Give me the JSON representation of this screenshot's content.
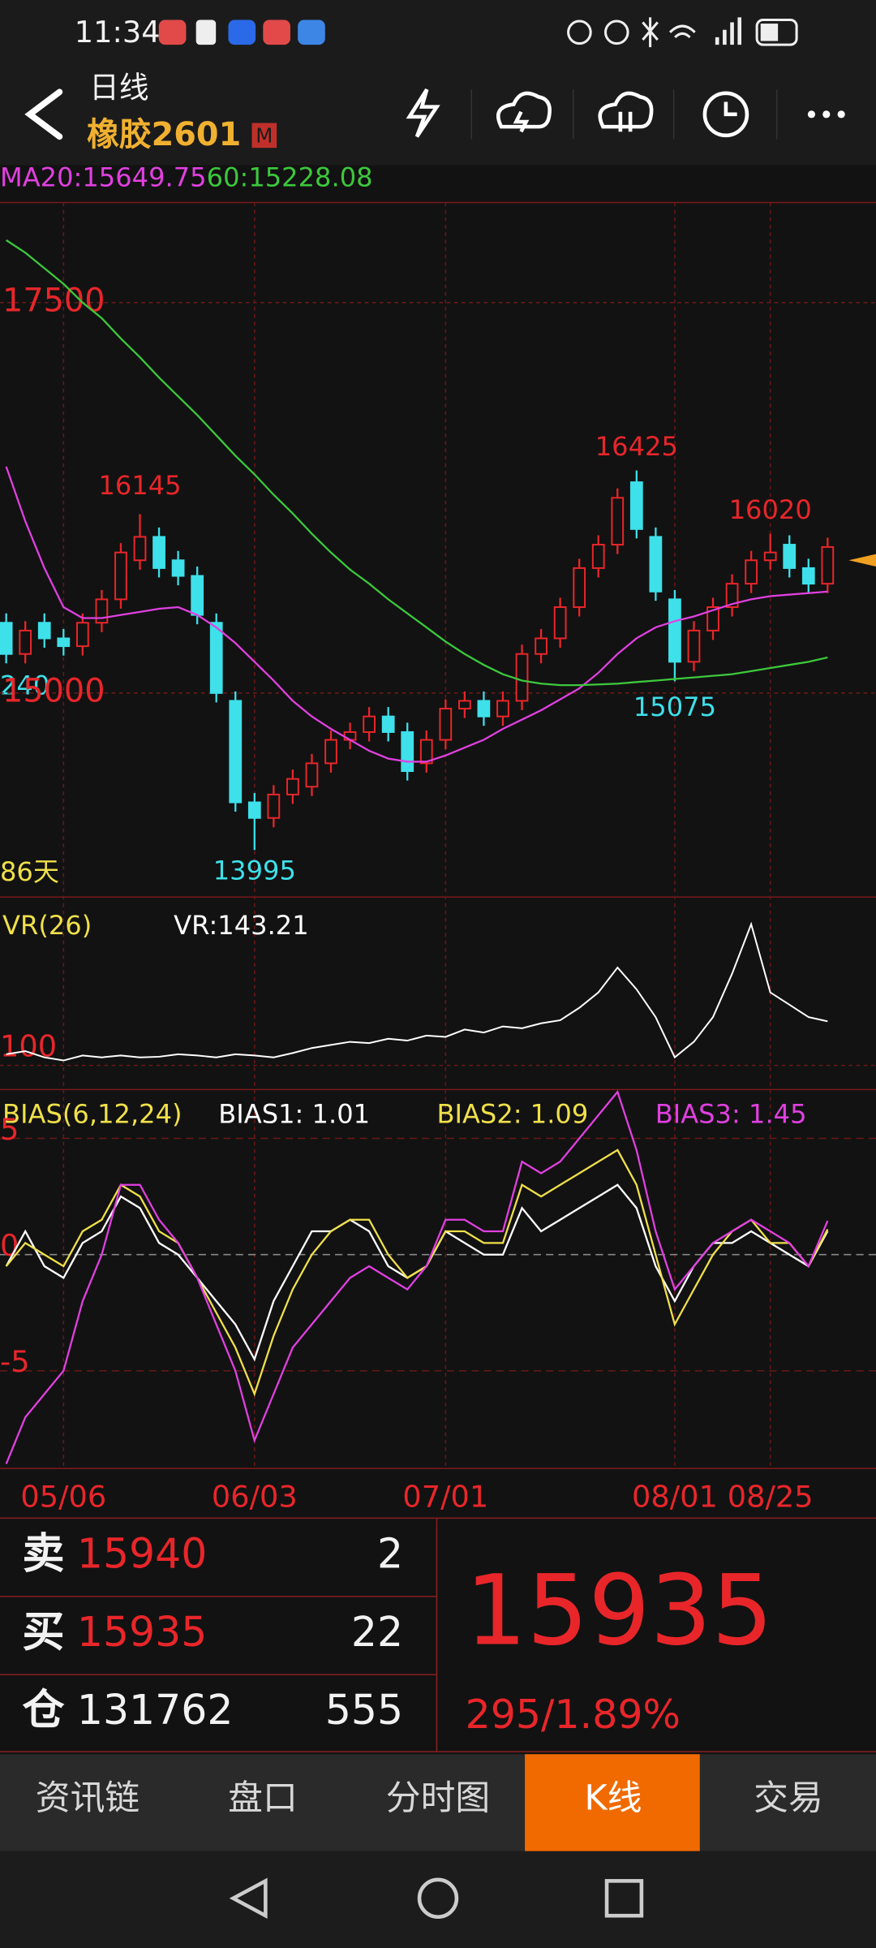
{
  "status_bar": {
    "time": "11:34"
  },
  "header": {
    "period": "日线",
    "contract": "橡胶2601",
    "badge": "M"
  },
  "price_panel": {
    "type": "candlestick",
    "open": [
      15450,
      15250,
      15450,
      15350,
      15300,
      15450,
      15600,
      15850,
      16000,
      15850,
      15750,
      15450,
      14950,
      14300,
      14200,
      14350,
      14400,
      14550,
      14700,
      14750,
      14850,
      14750,
      14550,
      14700,
      14900,
      14950,
      14850,
      14950,
      15250,
      15350,
      15550,
      15800,
      15950,
      16350,
      16000,
      15600,
      15200,
      15400,
      15550,
      15700,
      15850,
      15950,
      15800,
      15700
    ],
    "high": [
      15510,
      15460,
      15510,
      15410,
      15510,
      15660,
      15960,
      16145,
      16060,
      15910,
      15810,
      15510,
      15010,
      14360,
      14410,
      14510,
      14610,
      14760,
      14810,
      14910,
      14910,
      14810,
      14760,
      14960,
      15010,
      15010,
      15010,
      15310,
      15410,
      15610,
      15860,
      16010,
      16310,
      16425,
      16060,
      15660,
      15460,
      15610,
      15760,
      15910,
      16020,
      16010,
      15860,
      15995
    ],
    "low": [
      15190,
      15190,
      15290,
      15240,
      15240,
      15390,
      15540,
      15790,
      15740,
      15690,
      15440,
      14940,
      14240,
      13995,
      14140,
      14290,
      14340,
      14490,
      14640,
      14690,
      14690,
      14440,
      14490,
      14640,
      14840,
      14790,
      14790,
      14890,
      15190,
      15290,
      15490,
      15740,
      15890,
      15990,
      15590,
      15075,
      15140,
      15340,
      15490,
      15640,
      15790,
      15740,
      15640,
      15640
    ],
    "close": [
      15250,
      15400,
      15350,
      15300,
      15450,
      15600,
      15900,
      16000,
      15800,
      15750,
      15500,
      15000,
      14300,
      14200,
      14350,
      14450,
      14550,
      14700,
      14750,
      14850,
      14750,
      14500,
      14700,
      14900,
      14950,
      14850,
      14950,
      15250,
      15350,
      15550,
      15800,
      15950,
      16250,
      16050,
      15650,
      15200,
      15400,
      15550,
      15700,
      15850,
      15900,
      15800,
      15700,
      15935
    ],
    "up_color": "#e8262a",
    "down_color": "#3ee0ea",
    "series": [
      {
        "name": "MA20:",
        "color": "#e040e0",
        "values": [
          16450,
          16100,
          15800,
          15550,
          15480,
          15480,
          15500,
          15520,
          15540,
          15550,
          15500,
          15420,
          15320,
          15200,
          15080,
          14950,
          14850,
          14770,
          14700,
          14630,
          14580,
          14560,
          14560,
          14600,
          14650,
          14700,
          14770,
          14830,
          14890,
          14960,
          15030,
          15130,
          15250,
          15350,
          15420,
          15460,
          15490,
          15530,
          15570,
          15600,
          15620,
          15630,
          15640,
          15649.75
        ]
      },
      {
        "name": "60:",
        "color": "#3cc83c",
        "values": [
          17900,
          17820,
          17720,
          17620,
          17500,
          17400,
          17270,
          17150,
          17020,
          16900,
          16780,
          16650,
          16520,
          16400,
          16270,
          16150,
          16020,
          15900,
          15790,
          15700,
          15600,
          15510,
          15420,
          15330,
          15250,
          15180,
          15120,
          15080,
          15060,
          15050,
          15050,
          15055,
          15060,
          15070,
          15080,
          15090,
          15100,
          15110,
          15120,
          15140,
          15160,
          15180,
          15200,
          15228.08
        ]
      }
    ],
    "ylim": [
      13694,
      18141
    ],
    "yticks": [
      15000,
      17500
    ],
    "days_label": "86天",
    "partial_label": "240"
  },
  "vr_panel": {
    "type": "line",
    "title": "VR(26)",
    "series": [
      {
        "name": "VR:",
        "color": "#ffffff",
        "values": [
          90,
          95,
          85,
          80,
          88,
          85,
          88,
          85,
          86,
          90,
          88,
          85,
          90,
          88,
          85,
          92,
          100,
          105,
          110,
          108,
          115,
          112,
          120,
          118,
          130,
          125,
          135,
          132,
          140,
          145,
          165,
          190,
          230,
          195,
          150,
          85,
          110,
          150,
          220,
          300,
          190,
          170,
          150,
          143.21
        ]
      }
    ],
    "ylim": [
      33,
      344
    ],
    "yticks": [
      100
    ]
  },
  "bias_panel": {
    "type": "line",
    "title": "BIAS(6,12,24)",
    "series": [
      {
        "name": "BIAS1: ",
        "color": "#ffffff",
        "values": [
          -0.5,
          1,
          -0.5,
          -1,
          0.5,
          1,
          2.5,
          2,
          0.5,
          0,
          -1,
          -2,
          -3,
          -4.5,
          -2,
          -0.5,
          1,
          1,
          1.5,
          1,
          -0.5,
          -1,
          -0.5,
          1,
          0.5,
          0,
          0,
          2,
          1,
          1.5,
          2,
          2.5,
          3,
          2,
          -0.5,
          -2,
          -0.5,
          0.5,
          0.5,
          1,
          0.5,
          0,
          -0.5,
          1.01
        ]
      },
      {
        "name": "BIAS2: ",
        "color": "#f0e04a",
        "values": [
          -0.5,
          0.5,
          0,
          -0.5,
          1,
          1.5,
          3,
          2.5,
          1,
          0.5,
          -1,
          -2.5,
          -4,
          -6,
          -3.5,
          -1.5,
          0,
          1,
          1.5,
          1.5,
          0,
          -1,
          -0.5,
          1,
          1,
          0.5,
          0.5,
          3,
          2.5,
          3,
          3.5,
          4,
          4.5,
          3,
          0,
          -3,
          -1.5,
          0,
          1,
          1.5,
          0.5,
          0.5,
          -0.5,
          1.09
        ]
      },
      {
        "name": "BIAS3: ",
        "color": "#e040e0",
        "values": [
          -9,
          -7,
          -6,
          -5,
          -2,
          0,
          3,
          3,
          1.5,
          0.5,
          -1,
          -3,
          -5,
          -8,
          -6,
          -4,
          -3,
          -2,
          -1,
          -0.5,
          -1,
          -1.5,
          -0.5,
          1.5,
          1.5,
          1,
          1,
          4,
          3.5,
          4,
          5,
          6,
          7,
          4.5,
          1,
          -1.5,
          -0.5,
          0.5,
          1,
          1.5,
          1,
          0.5,
          -0.5,
          1.45
        ]
      }
    ],
    "ylim": [
      -9.2,
      7.1
    ],
    "yticks": [
      -5,
      0,
      5
    ]
  },
  "x_axis": {
    "categories": [
      null,
      null,
      null,
      "05/06",
      null,
      null,
      null,
      null,
      null,
      null,
      null,
      null,
      null,
      "06/03",
      null,
      null,
      null,
      null,
      null,
      null,
      null,
      null,
      null,
      "07/01",
      null,
      null,
      null,
      null,
      null,
      null,
      null,
      null,
      null,
      null,
      null,
      "08/01",
      null,
      null,
      null,
      null,
      "08/25",
      null,
      null,
      null
    ]
  },
  "quote": {
    "rows": [
      {
        "label": "卖",
        "price": 15940,
        "qty": 2
      },
      {
        "label": "买",
        "price": 15935,
        "qty": 22
      },
      {
        "label": "仓",
        "price": 131762,
        "qty": 555
      }
    ],
    "last": 15935,
    "change": "295/1.89%"
  },
  "tabs": {
    "items": [
      "资讯链",
      "盘口",
      "分时图",
      "K线",
      "交易"
    ],
    "active": 3
  }
}
